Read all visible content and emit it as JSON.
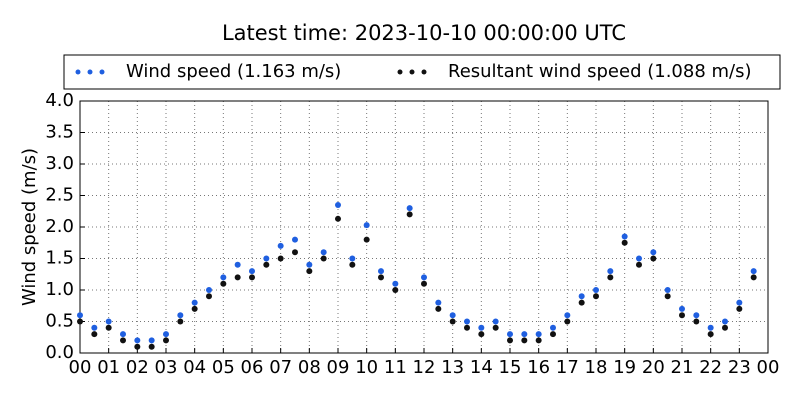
{
  "chart_data": {
    "type": "scatter",
    "title": "Latest time: 2023-10-10 00:00:00 UTC",
    "ylabel": "Wind speed (m/s)",
    "xlim": [
      0,
      24
    ],
    "ylim": [
      0,
      4
    ],
    "xticks": [
      {
        "value": 0,
        "label": "00"
      },
      {
        "value": 1,
        "label": "01"
      },
      {
        "value": 2,
        "label": "02"
      },
      {
        "value": 3,
        "label": "03"
      },
      {
        "value": 4,
        "label": "04"
      },
      {
        "value": 5,
        "label": "05"
      },
      {
        "value": 6,
        "label": "06"
      },
      {
        "value": 7,
        "label": "07"
      },
      {
        "value": 8,
        "label": "08"
      },
      {
        "value": 9,
        "label": "09"
      },
      {
        "value": 10,
        "label": "10"
      },
      {
        "value": 11,
        "label": "11"
      },
      {
        "value": 12,
        "label": "12"
      },
      {
        "value": 13,
        "label": "13"
      },
      {
        "value": 14,
        "label": "14"
      },
      {
        "value": 15,
        "label": "15"
      },
      {
        "value": 16,
        "label": "16"
      },
      {
        "value": 17,
        "label": "17"
      },
      {
        "value": 18,
        "label": "18"
      },
      {
        "value": 19,
        "label": "19"
      },
      {
        "value": 20,
        "label": "20"
      },
      {
        "value": 21,
        "label": "21"
      },
      {
        "value": 22,
        "label": "22"
      },
      {
        "value": 23,
        "label": "23"
      },
      {
        "value": 24,
        "label": "00"
      }
    ],
    "yticks": [
      {
        "value": 0,
        "label": "0.0"
      },
      {
        "value": 0.5,
        "label": "0.5"
      },
      {
        "value": 1,
        "label": "1.0"
      },
      {
        "value": 1.5,
        "label": "1.5"
      },
      {
        "value": 2,
        "label": "2.0"
      },
      {
        "value": 2.5,
        "label": "2.5"
      },
      {
        "value": 3,
        "label": "3.0"
      },
      {
        "value": 3.5,
        "label": "3.5"
      },
      {
        "value": 4,
        "label": "4.0"
      }
    ],
    "grid": true,
    "x": [
      0,
      0.5,
      1,
      1.5,
      2,
      2.5,
      3,
      3.5,
      4,
      4.5,
      5,
      5.5,
      6,
      6.5,
      7,
      7.5,
      8,
      8.5,
      9,
      9.5,
      10,
      10.5,
      11,
      11.5,
      12,
      12.5,
      13,
      13.5,
      14,
      14.5,
      15,
      15.5,
      16,
      16.5,
      17,
      17.5,
      18,
      18.5,
      19,
      19.5,
      20,
      20.5,
      21,
      21.5,
      22,
      22.5,
      23,
      23.5
    ],
    "series": [
      {
        "name": "Wind speed (1.163 m/s)",
        "color": "#1f5fe0",
        "values": [
          0.6,
          0.4,
          0.5,
          0.3,
          0.2,
          0.2,
          0.3,
          0.6,
          0.8,
          1.0,
          1.2,
          1.4,
          1.3,
          1.5,
          1.7,
          1.8,
          1.4,
          1.6,
          2.35,
          1.5,
          2.03,
          1.3,
          1.1,
          2.3,
          1.2,
          0.8,
          0.6,
          0.5,
          0.4,
          0.5,
          0.3,
          0.3,
          0.3,
          0.4,
          0.6,
          0.9,
          1.0,
          1.3,
          1.85,
          1.5,
          1.6,
          1.0,
          0.7,
          0.6,
          0.4,
          0.5,
          0.8,
          1.3
        ]
      },
      {
        "name": "Resultant wind speed (1.088 m/s)",
        "color": "#111111",
        "values": [
          0.5,
          0.3,
          0.4,
          0.2,
          0.1,
          0.1,
          0.2,
          0.5,
          0.7,
          0.9,
          1.1,
          1.2,
          1.2,
          1.4,
          1.5,
          1.6,
          1.3,
          1.5,
          2.13,
          1.4,
          1.8,
          1.2,
          1.0,
          2.2,
          1.1,
          0.7,
          0.5,
          0.4,
          0.3,
          0.4,
          0.2,
          0.2,
          0.2,
          0.3,
          0.5,
          0.8,
          0.9,
          1.2,
          1.75,
          1.4,
          1.5,
          0.9,
          0.6,
          0.5,
          0.3,
          0.4,
          0.7,
          1.2
        ]
      }
    ]
  }
}
